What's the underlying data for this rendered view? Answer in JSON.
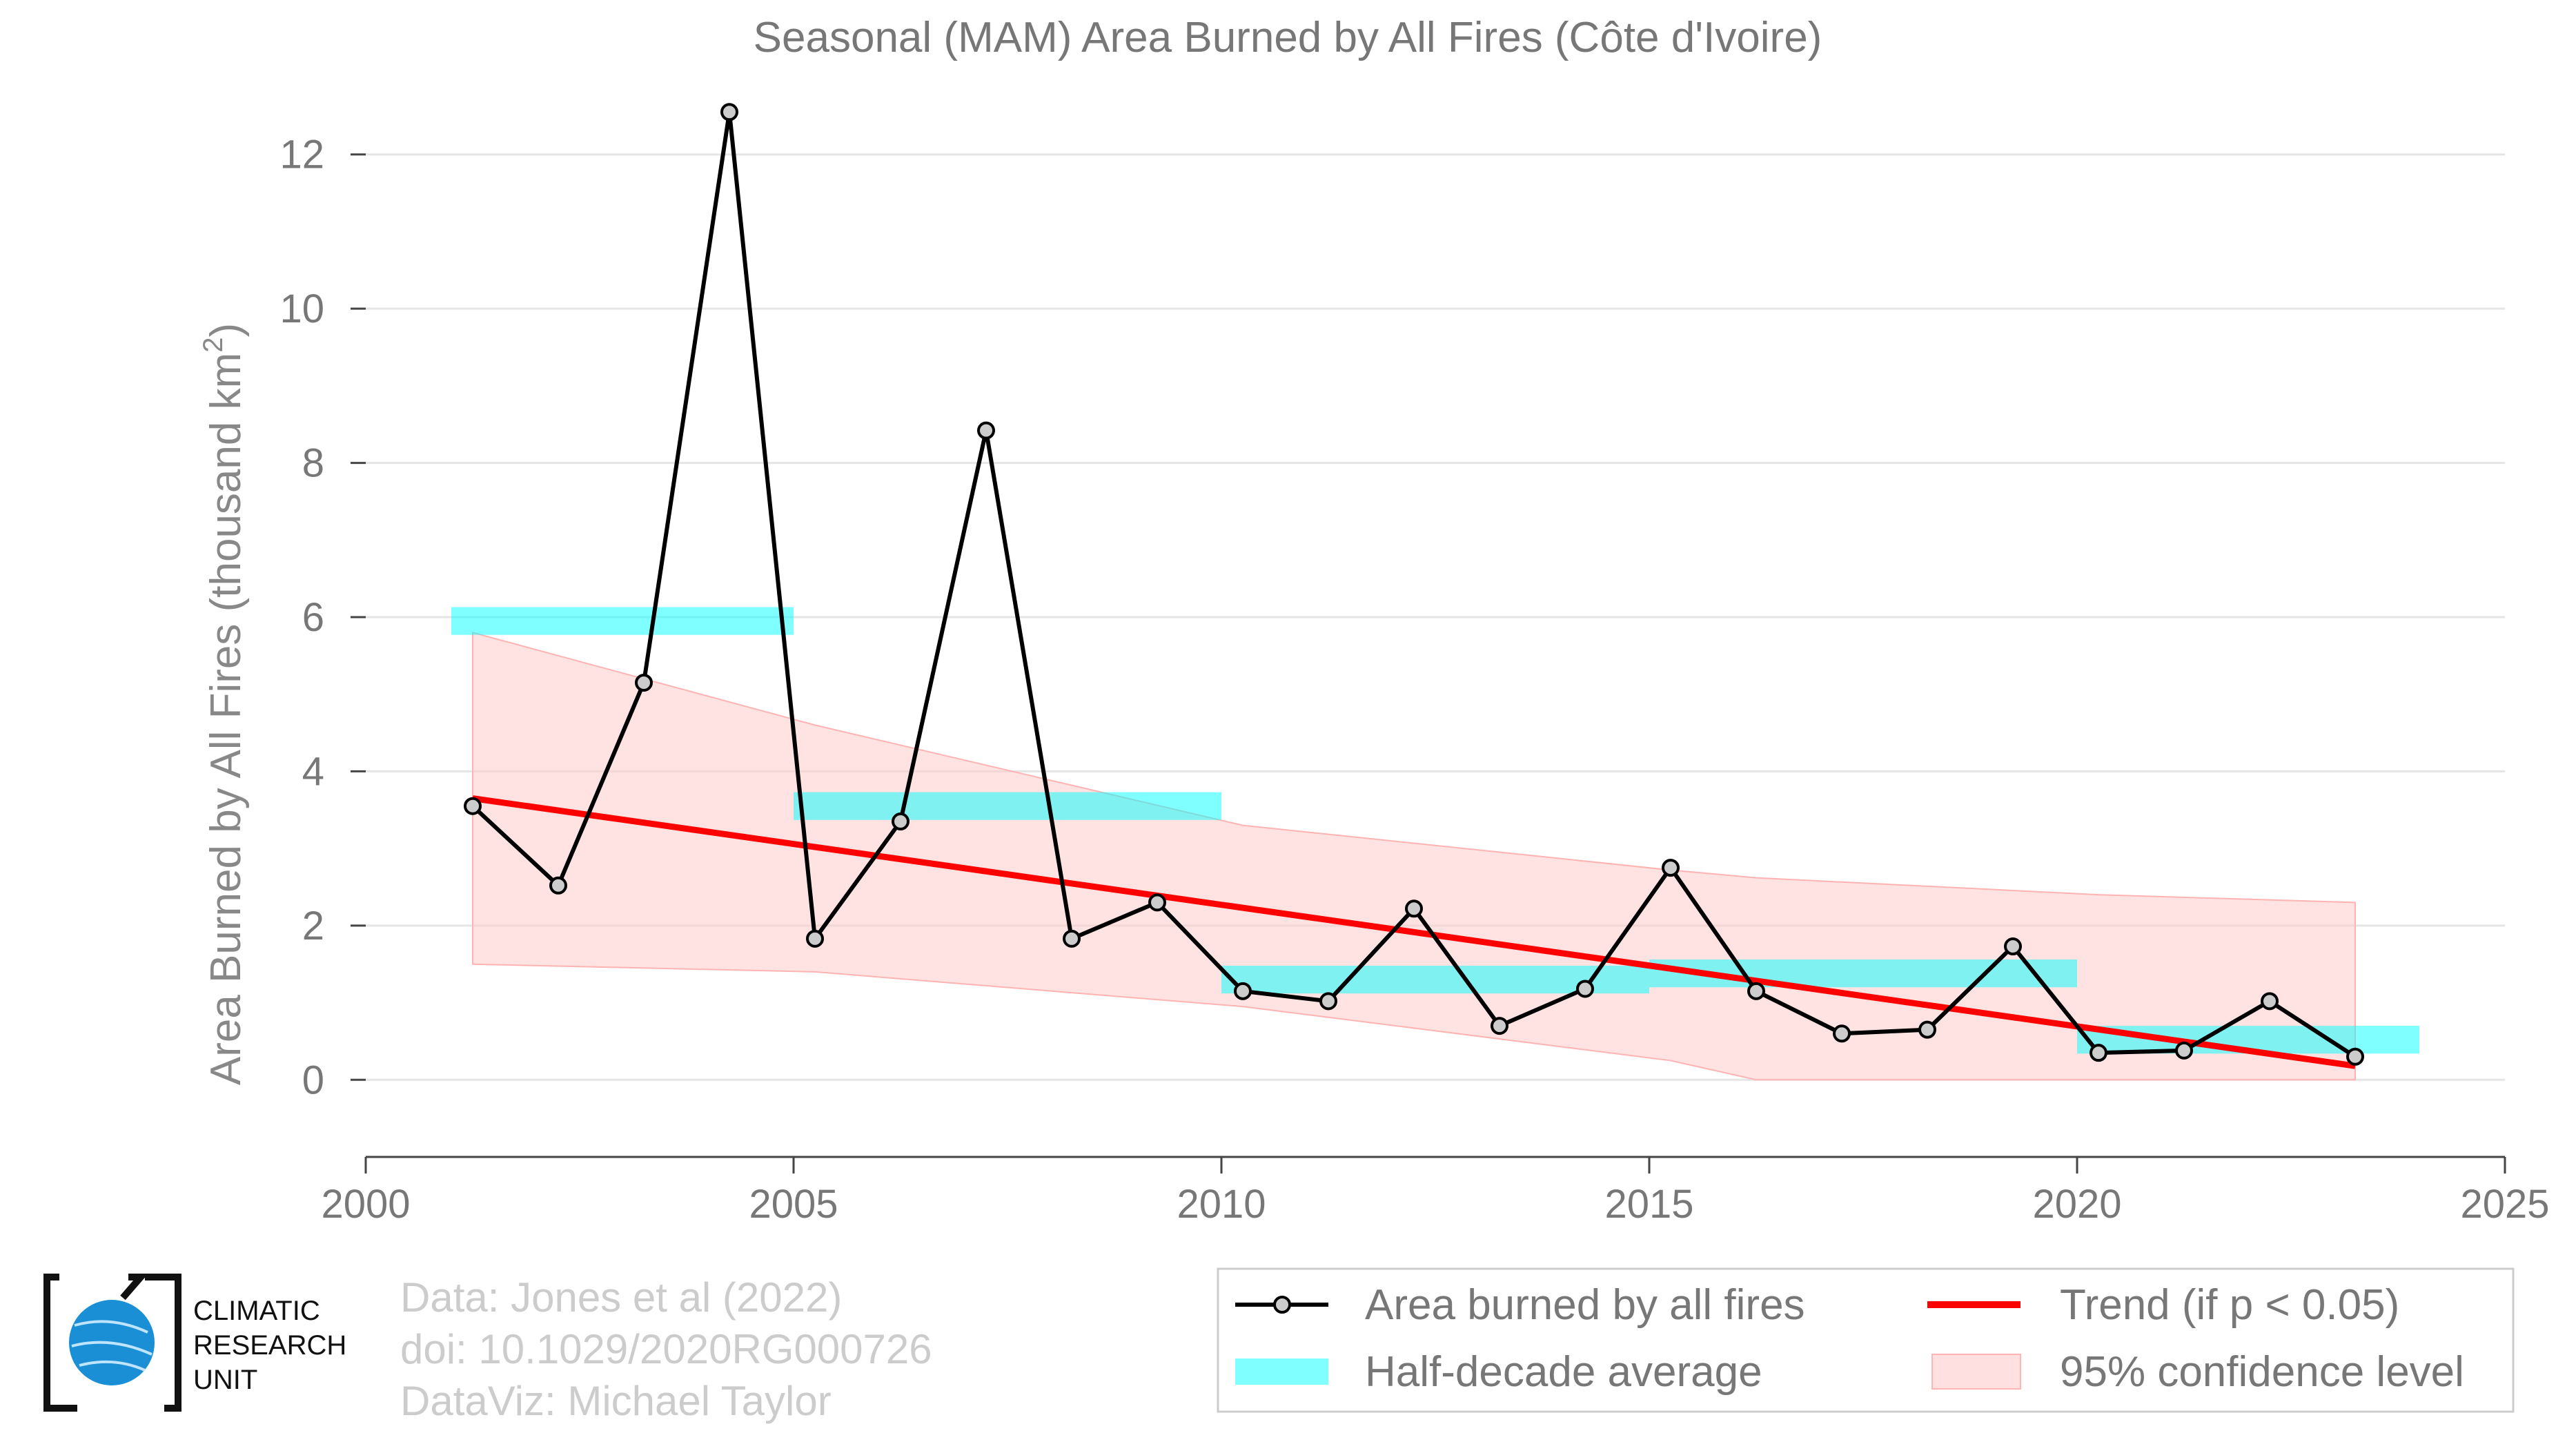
{
  "chart_data": {
    "type": "line",
    "title": "Seasonal (MAM) Area Burned by All Fires (Côte d'Ivoire)",
    "ylabel": "Area Burned by All Fires (thousand km",
    "ylabel_sup": "2",
    "ylabel_close": ")",
    "xlim": [
      2000,
      2025
    ],
    "ylim": [
      -1,
      13
    ],
    "x_ticks": [
      2000,
      2005,
      2010,
      2015,
      2020,
      2025
    ],
    "y_ticks": [
      0,
      2,
      4,
      6,
      8,
      10,
      12
    ],
    "grid": "horizontal",
    "series": [
      {
        "name": "Area burned by all fires",
        "color": "#000000",
        "x": [
          2001.25,
          2002.25,
          2003.25,
          2004.25,
          2005.25,
          2006.25,
          2007.25,
          2008.25,
          2009.25,
          2010.25,
          2011.25,
          2012.25,
          2013.25,
          2014.25,
          2015.25,
          2016.25,
          2017.25,
          2018.25,
          2019.25,
          2020.25,
          2021.25,
          2022.25,
          2023.25
        ],
        "values": [
          3.55,
          2.52,
          5.15,
          12.55,
          1.83,
          3.35,
          8.42,
          1.83,
          2.3,
          1.15,
          1.02,
          2.22,
          0.7,
          1.18,
          2.75,
          1.15,
          0.6,
          0.65,
          1.73,
          0.35,
          0.38,
          1.02,
          0.3
        ]
      },
      {
        "name": "Half-decade average",
        "color": "#00ffff",
        "periods": [
          [
            2001,
            2005
          ],
          [
            2005,
            2010
          ],
          [
            2010,
            2015
          ],
          [
            2015,
            2020
          ],
          [
            2020,
            2024
          ]
        ],
        "values": [
          5.95,
          3.55,
          1.3,
          1.38,
          0.52
        ]
      },
      {
        "name": "Trend (if p < 0.05)",
        "color": "#ff0000",
        "x": [
          2001.25,
          2023.25
        ],
        "values": [
          3.65,
          0.18
        ]
      },
      {
        "name": "95% confidence level",
        "color": "#ffcccc",
        "x": [
          2001.25,
          2005.25,
          2010.25,
          2015.25,
          2016.25,
          2020.25,
          2023.25
        ],
        "upper": [
          5.8,
          4.6,
          3.3,
          2.72,
          2.62,
          2.4,
          2.3
        ],
        "lower": [
          1.5,
          1.4,
          0.95,
          0.25,
          0.0,
          0.0,
          0.0
        ]
      }
    ],
    "legend_position": "bottom-right",
    "credits": [
      "Data: Jones et al (2022)",
      "doi: 10.1029/2020RG000726",
      "DataViz: Michael Taylor"
    ]
  },
  "logo": {
    "lines": [
      "CLIMATIC",
      "RESEARCH",
      "UNIT"
    ],
    "color": "#1a8fd6"
  }
}
